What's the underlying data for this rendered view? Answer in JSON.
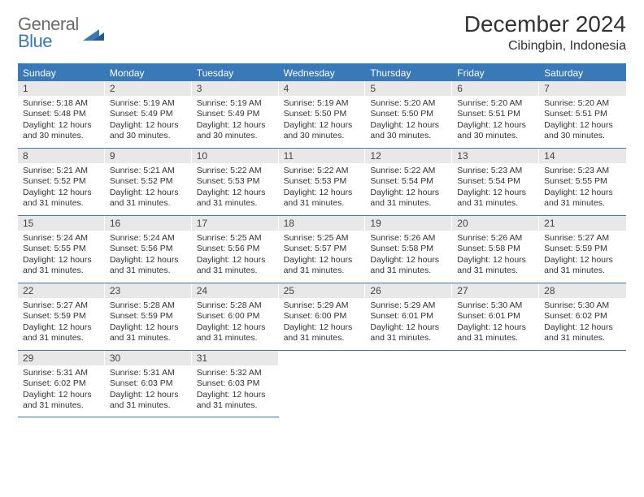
{
  "logo": {
    "general": "General",
    "blue": "Blue"
  },
  "title": "December 2024",
  "location": "Cibingbin, Indonesia",
  "colors": {
    "brand": "#3a79b7",
    "dayHeaderBg": "#e8e8e8",
    "text": "#333333",
    "logoGray": "#6b6b6b",
    "bg": "#ffffff"
  },
  "weekdays": [
    "Sunday",
    "Monday",
    "Tuesday",
    "Wednesday",
    "Thursday",
    "Friday",
    "Saturday"
  ],
  "weeks": [
    [
      {
        "n": "1",
        "sunrise": "5:18 AM",
        "sunset": "5:48 PM",
        "dh": "12",
        "dm": "30"
      },
      {
        "n": "2",
        "sunrise": "5:19 AM",
        "sunset": "5:49 PM",
        "dh": "12",
        "dm": "30"
      },
      {
        "n": "3",
        "sunrise": "5:19 AM",
        "sunset": "5:49 PM",
        "dh": "12",
        "dm": "30"
      },
      {
        "n": "4",
        "sunrise": "5:19 AM",
        "sunset": "5:50 PM",
        "dh": "12",
        "dm": "30"
      },
      {
        "n": "5",
        "sunrise": "5:20 AM",
        "sunset": "5:50 PM",
        "dh": "12",
        "dm": "30"
      },
      {
        "n": "6",
        "sunrise": "5:20 AM",
        "sunset": "5:51 PM",
        "dh": "12",
        "dm": "30"
      },
      {
        "n": "7",
        "sunrise": "5:20 AM",
        "sunset": "5:51 PM",
        "dh": "12",
        "dm": "30"
      }
    ],
    [
      {
        "n": "8",
        "sunrise": "5:21 AM",
        "sunset": "5:52 PM",
        "dh": "12",
        "dm": "31"
      },
      {
        "n": "9",
        "sunrise": "5:21 AM",
        "sunset": "5:52 PM",
        "dh": "12",
        "dm": "31"
      },
      {
        "n": "10",
        "sunrise": "5:22 AM",
        "sunset": "5:53 PM",
        "dh": "12",
        "dm": "31"
      },
      {
        "n": "11",
        "sunrise": "5:22 AM",
        "sunset": "5:53 PM",
        "dh": "12",
        "dm": "31"
      },
      {
        "n": "12",
        "sunrise": "5:22 AM",
        "sunset": "5:54 PM",
        "dh": "12",
        "dm": "31"
      },
      {
        "n": "13",
        "sunrise": "5:23 AM",
        "sunset": "5:54 PM",
        "dh": "12",
        "dm": "31"
      },
      {
        "n": "14",
        "sunrise": "5:23 AM",
        "sunset": "5:55 PM",
        "dh": "12",
        "dm": "31"
      }
    ],
    [
      {
        "n": "15",
        "sunrise": "5:24 AM",
        "sunset": "5:55 PM",
        "dh": "12",
        "dm": "31"
      },
      {
        "n": "16",
        "sunrise": "5:24 AM",
        "sunset": "5:56 PM",
        "dh": "12",
        "dm": "31"
      },
      {
        "n": "17",
        "sunrise": "5:25 AM",
        "sunset": "5:56 PM",
        "dh": "12",
        "dm": "31"
      },
      {
        "n": "18",
        "sunrise": "5:25 AM",
        "sunset": "5:57 PM",
        "dh": "12",
        "dm": "31"
      },
      {
        "n": "19",
        "sunrise": "5:26 AM",
        "sunset": "5:58 PM",
        "dh": "12",
        "dm": "31"
      },
      {
        "n": "20",
        "sunrise": "5:26 AM",
        "sunset": "5:58 PM",
        "dh": "12",
        "dm": "31"
      },
      {
        "n": "21",
        "sunrise": "5:27 AM",
        "sunset": "5:59 PM",
        "dh": "12",
        "dm": "31"
      }
    ],
    [
      {
        "n": "22",
        "sunrise": "5:27 AM",
        "sunset": "5:59 PM",
        "dh": "12",
        "dm": "31"
      },
      {
        "n": "23",
        "sunrise": "5:28 AM",
        "sunset": "5:59 PM",
        "dh": "12",
        "dm": "31"
      },
      {
        "n": "24",
        "sunrise": "5:28 AM",
        "sunset": "6:00 PM",
        "dh": "12",
        "dm": "31"
      },
      {
        "n": "25",
        "sunrise": "5:29 AM",
        "sunset": "6:00 PM",
        "dh": "12",
        "dm": "31"
      },
      {
        "n": "26",
        "sunrise": "5:29 AM",
        "sunset": "6:01 PM",
        "dh": "12",
        "dm": "31"
      },
      {
        "n": "27",
        "sunrise": "5:30 AM",
        "sunset": "6:01 PM",
        "dh": "12",
        "dm": "31"
      },
      {
        "n": "28",
        "sunrise": "5:30 AM",
        "sunset": "6:02 PM",
        "dh": "12",
        "dm": "31"
      }
    ],
    [
      {
        "n": "29",
        "sunrise": "5:31 AM",
        "sunset": "6:02 PM",
        "dh": "12",
        "dm": "31"
      },
      {
        "n": "30",
        "sunrise": "5:31 AM",
        "sunset": "6:03 PM",
        "dh": "12",
        "dm": "31"
      },
      {
        "n": "31",
        "sunrise": "5:32 AM",
        "sunset": "6:03 PM",
        "dh": "12",
        "dm": "31"
      },
      null,
      null,
      null,
      null
    ]
  ],
  "labels": {
    "sunrise": "Sunrise:",
    "sunset": "Sunset:",
    "daylight": "Daylight:",
    "hours": "hours",
    "and": "and",
    "minutes": "minutes."
  }
}
